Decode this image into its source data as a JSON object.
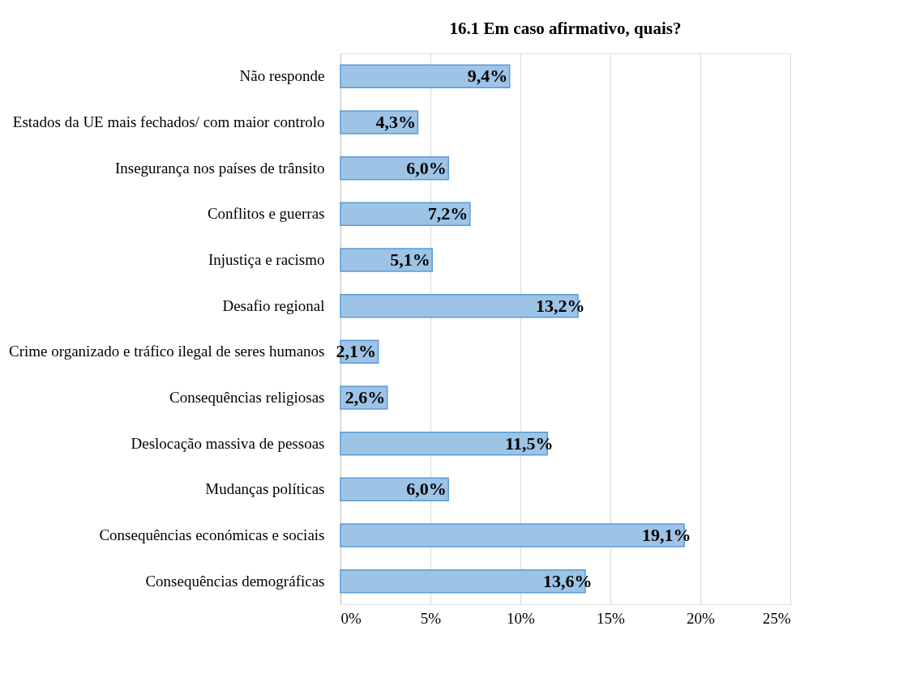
{
  "chart_data": {
    "type": "bar",
    "orientation": "horizontal",
    "title": "16.1 Em caso afirmativo, quais?",
    "categories": [
      "Não responde",
      "Estados da UE mais fechados/ com maior controlo",
      "Insegurança nos países de trânsito",
      "Conflitos e guerras",
      "Injustiça e racismo",
      "Desafio regional",
      "Crime organizado e tráfico ilegal de seres humanos",
      "Consequências religiosas",
      "Deslocação massiva de pessoas",
      "Mudanças políticas",
      "Consequências económicas e sociais",
      "Consequências demográficas"
    ],
    "values": [
      9.4,
      4.3,
      6.0,
      7.2,
      5.1,
      13.2,
      2.1,
      2.6,
      11.5,
      6.0,
      19.1,
      13.6
    ],
    "value_labels": [
      "9,4%",
      "4,3%",
      "6,0%",
      "7,2%",
      "5,1%",
      "13,2%",
      "2,1%",
      "2,6%",
      "11,5%",
      "6,0%",
      "19,1%",
      "13,6%"
    ],
    "color": "#9dc3e6",
    "xlim": [
      0,
      25
    ],
    "xticks": [
      {
        "value": 0,
        "label": "0%"
      },
      {
        "value": 5,
        "label": "5%"
      },
      {
        "value": 10,
        "label": "10%"
      },
      {
        "value": 15,
        "label": "15%"
      },
      {
        "value": 20,
        "label": "20%"
      },
      {
        "value": 25,
        "label": "25%"
      }
    ],
    "grid": "x"
  }
}
